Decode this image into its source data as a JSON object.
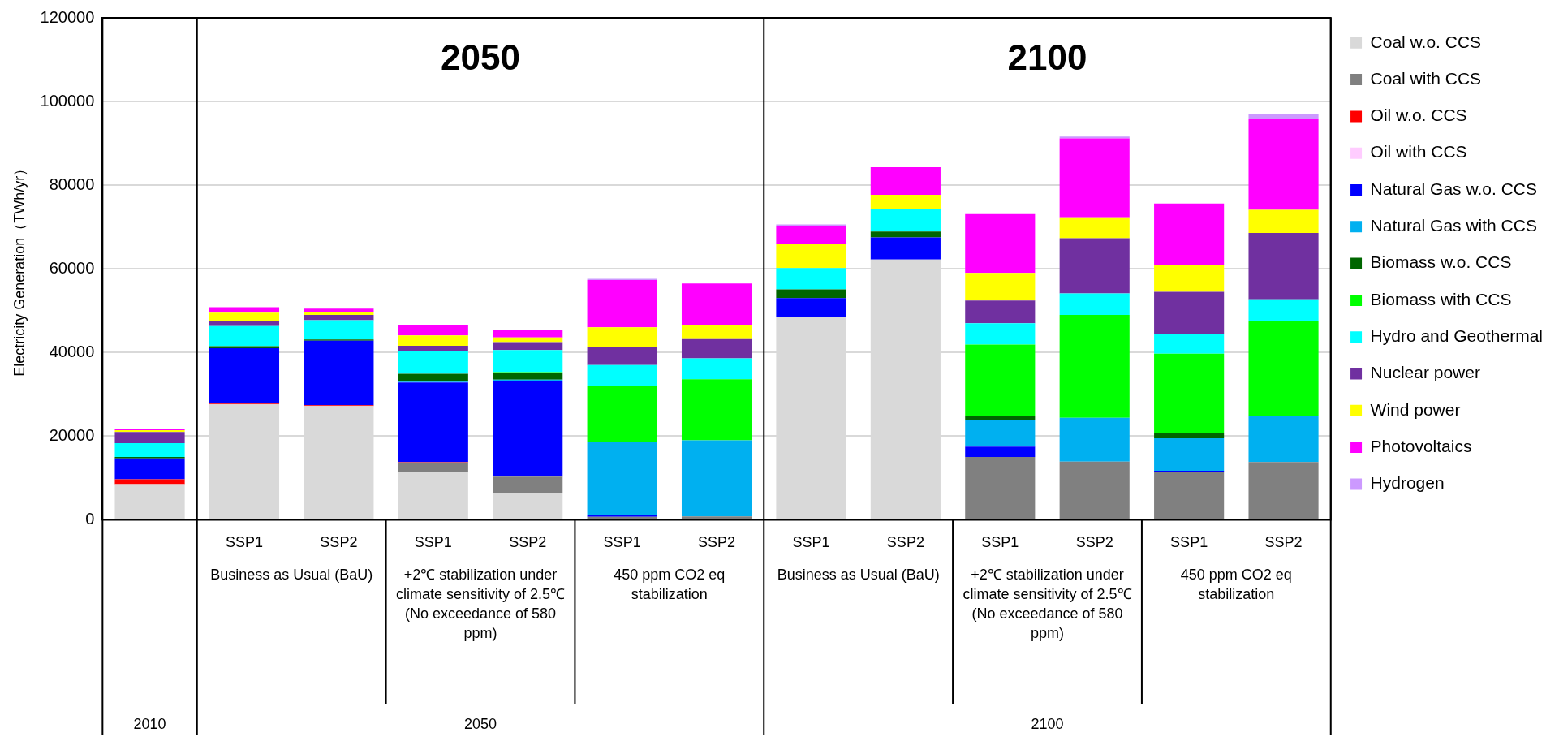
{
  "chart_data": {
    "type": "bar",
    "stacked": true,
    "ylabel": "Electricity Generation（TWh/yr）",
    "ylim": [
      0,
      120000
    ],
    "yticks": [
      0,
      20000,
      40000,
      60000,
      80000,
      100000,
      120000
    ],
    "grid": "y",
    "legend": "right",
    "categories": [
      null,
      "SSP1",
      "SSP2",
      "SSP1",
      "SSP2",
      "SSP1",
      "SSP2",
      "SSP1",
      "SSP2",
      "SSP1",
      "SSP2",
      "SSP1",
      "SSP2"
    ],
    "annotations": [
      "2050",
      "2100",
      "Business as Usual (BaU)",
      "+2℃ stabilization under climate sensitivity of 2.5℃ (No exceedance of 580 ppm)",
      "450 ppm CO2 eq stabilization",
      "Business as Usual (BaU)",
      "+2℃ stabilization under climate sensitivity of 2.5℃ (No exceedance of 580 ppm)",
      "450 ppm CO2 eq stabilization",
      "2010",
      "2050",
      "2100"
    ],
    "series": [
      {
        "name": "Coal w.o. CCS",
        "color": "#d9d9d9",
        "values": [
          8500,
          27600,
          27200,
          11300,
          6500,
          null,
          null,
          48400,
          62200,
          0,
          0,
          0,
          0
        ]
      },
      {
        "name": "Coal with CCS",
        "color": "#808080",
        "values": [
          0,
          0,
          0,
          2400,
          3800,
          700,
          800,
          0,
          0,
          15000,
          13900,
          11400,
          13800
        ]
      },
      {
        "name": "Oil w.o. CCS",
        "color": "#ff0000",
        "values": [
          1200,
          200,
          200,
          100,
          null,
          0,
          0,
          0,
          0,
          0,
          0,
          0,
          0
        ]
      },
      {
        "name": "Oil with CCS",
        "color": "#ffccff",
        "values": [
          0,
          0,
          0,
          0,
          0,
          0,
          0,
          0,
          0,
          0,
          0,
          0,
          0
        ]
      },
      {
        "name": "Natural Gas w.o. CCS",
        "color": "#0000ff",
        "values": [
          5000,
          13200,
          15400,
          19000,
          22900,
          400,
          null,
          4600,
          5300,
          2500,
          0,
          300,
          0
        ]
      },
      {
        "name": "Natural Gas with CCS",
        "color": "#00b0f0",
        "values": [
          0,
          0,
          0,
          200,
          300,
          17600,
          18200,
          0,
          0,
          6400,
          10500,
          7800,
          10900
        ]
      },
      {
        "name": "Biomass w.o. CCS",
        "color": "#006600",
        "values": [
          300,
          500,
          300,
          1900,
          1500,
          0,
          0,
          2100,
          1400,
          1000,
          0,
          1300,
          0
        ]
      },
      {
        "name": "Biomass with CCS",
        "color": "#00ff00",
        "values": [
          0,
          0,
          0,
          0,
          300,
          13200,
          14600,
          0,
          0,
          17000,
          24600,
          18900,
          22900
        ]
      },
      {
        "name": "Hydro and Geothermal",
        "color": "#00ffff",
        "values": [
          3300,
          4800,
          4600,
          5400,
          5300,
          5100,
          5000,
          5100,
          5400,
          5100,
          5100,
          4700,
          5100
        ]
      },
      {
        "name": "Nuclear power",
        "color": "#7030a0",
        "values": [
          2700,
          1300,
          1300,
          1300,
          1900,
          4400,
          4600,
          0,
          0,
          5400,
          13200,
          10100,
          15900
        ]
      },
      {
        "name": "Wind power",
        "color": "#ffff00",
        "values": [
          400,
          1900,
          700,
          2500,
          1100,
          4600,
          3400,
          5700,
          3400,
          6600,
          5000,
          6500,
          5500
        ]
      },
      {
        "name": "Photovoltaics",
        "color": "#ff00ff",
        "values": [
          200,
          1300,
          800,
          2400,
          1800,
          11300,
          9900,
          4400,
          6600,
          14100,
          18900,
          14600,
          21800
        ]
      },
      {
        "name": "Hydrogen",
        "color": "#cc99ff",
        "values": [
          0,
          0,
          0,
          0,
          0,
          300,
          0,
          300,
          0,
          0,
          400,
          0,
          1100
        ]
      }
    ]
  }
}
